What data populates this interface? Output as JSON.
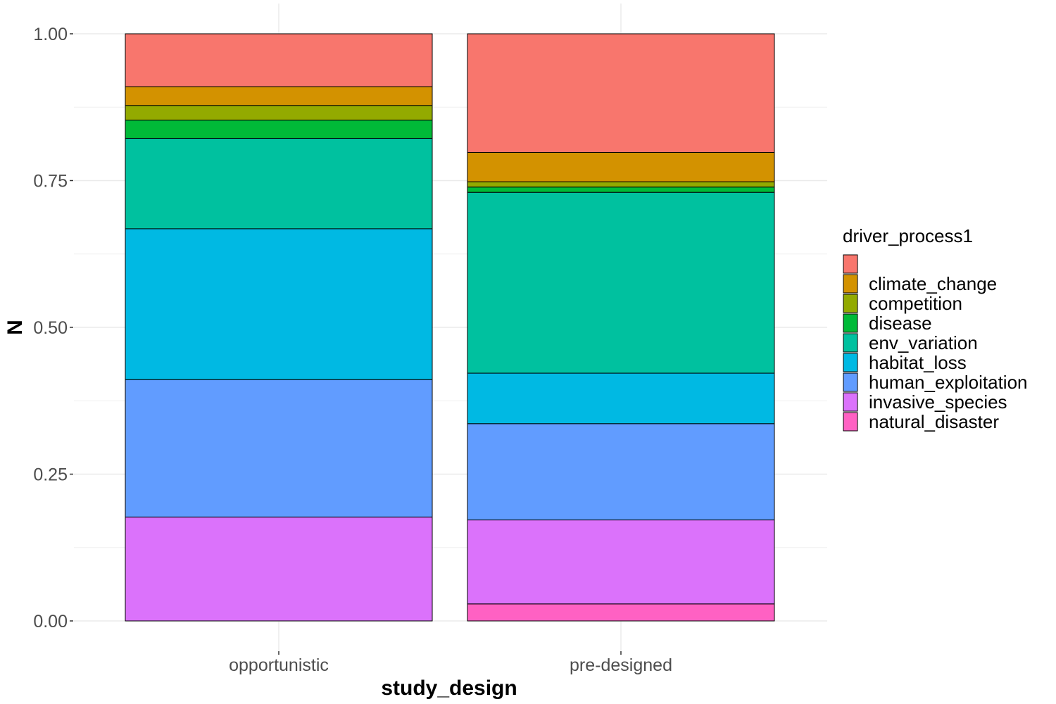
{
  "chart_data": {
    "type": "bar",
    "stacked": true,
    "xlabel": "study_design",
    "ylabel": "N",
    "ylim": [
      0,
      1
    ],
    "yticks": [
      "0.00",
      "0.25",
      "0.50",
      "0.75",
      "1.00"
    ],
    "ytick_values": [
      0,
      0.25,
      0.5,
      0.75,
      1.0
    ],
    "grid": true,
    "legend_title": "driver_process1",
    "legend_position": "right",
    "categories": [
      "opportunistic",
      "pre-designed"
    ],
    "series": [
      {
        "name": "natural_disaster",
        "color": "#FF61C3",
        "values": [
          0.0,
          0.029
        ]
      },
      {
        "name": "invasive_species",
        "color": "#DB72FB",
        "values": [
          0.177,
          0.143
        ]
      },
      {
        "name": "human_exploitation",
        "color": "#619CFF",
        "values": [
          0.234,
          0.164
        ]
      },
      {
        "name": "habitat_loss",
        "color": "#00B9E3",
        "values": [
          0.257,
          0.086
        ]
      },
      {
        "name": "env_variation",
        "color": "#00C19F",
        "values": [
          0.154,
          0.308
        ]
      },
      {
        "name": "disease",
        "color": "#00BA38",
        "values": [
          0.031,
          0.009
        ]
      },
      {
        "name": "competition",
        "color": "#93AA00",
        "values": [
          0.025,
          0.009
        ]
      },
      {
        "name": "climate_change",
        "color": "#D39200",
        "values": [
          0.032,
          0.05
        ]
      },
      {
        "name": "",
        "color": "#F8766D",
        "values": [
          0.09,
          0.202
        ]
      }
    ],
    "legend_order": [
      "",
      "climate_change",
      "competition",
      "disease",
      "env_variation",
      "habitat_loss",
      "human_exploitation",
      "invasive_species",
      "natural_disaster"
    ]
  }
}
